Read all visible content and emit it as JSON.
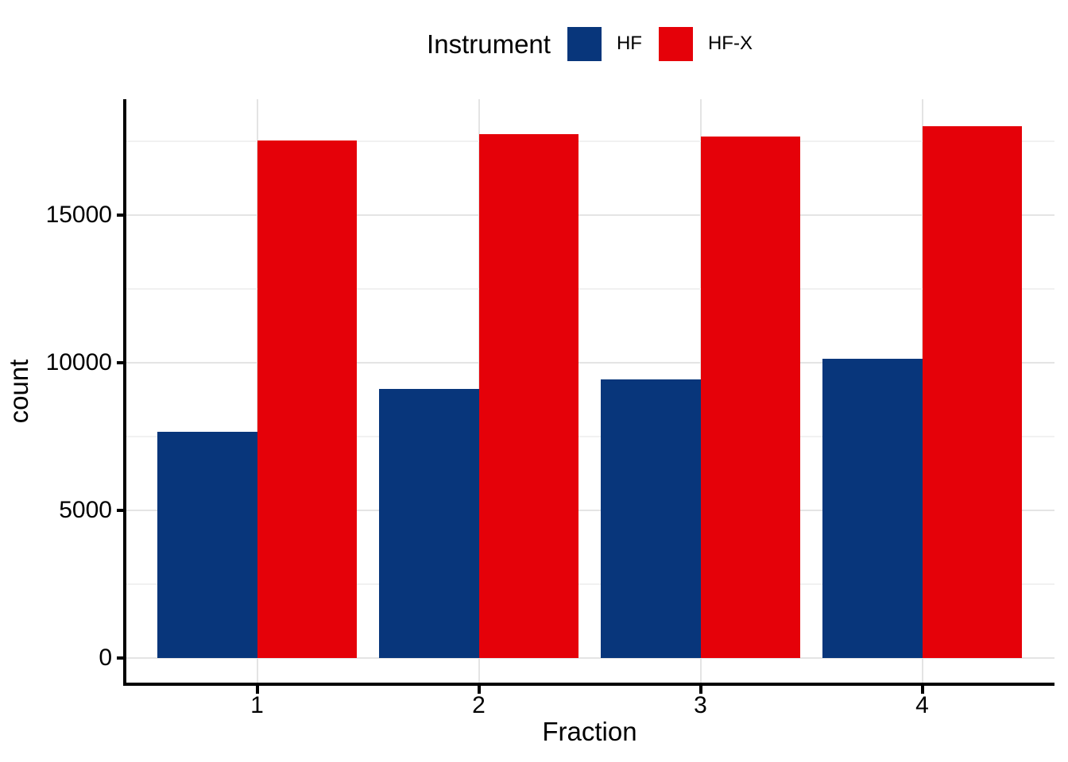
{
  "chart_data": {
    "type": "bar",
    "title": "",
    "legend_title": "Instrument",
    "legend_position": "top-center",
    "xlabel": "Fraction",
    "ylabel": "count",
    "bar_grouping": "dodge",
    "categories": [
      "1",
      "2",
      "3",
      "4"
    ],
    "series": [
      {
        "name": "HF",
        "color": "#08367B",
        "values": [
          7660,
          9100,
          9430,
          10140
        ]
      },
      {
        "name": "HF-X",
        "color": "#E50109",
        "values": [
          17520,
          17740,
          17670,
          18010
        ]
      }
    ],
    "ylim": [
      0,
      18900
    ],
    "yticks_major": [
      {
        "value": 0,
        "label": "0"
      },
      {
        "value": 5000,
        "label": "5000"
      },
      {
        "value": 10000,
        "label": "10000"
      },
      {
        "value": 15000,
        "label": "15000"
      }
    ],
    "yticks_minor": [
      2500,
      7500,
      12500,
      17500
    ],
    "grid": {
      "major_color": "#E4E4E4",
      "minor_color": "#F1F1F1",
      "vertical_major": true
    },
    "colors": {
      "background": "#FFFFFF",
      "axis": "#000000",
      "text": "#000000"
    }
  }
}
